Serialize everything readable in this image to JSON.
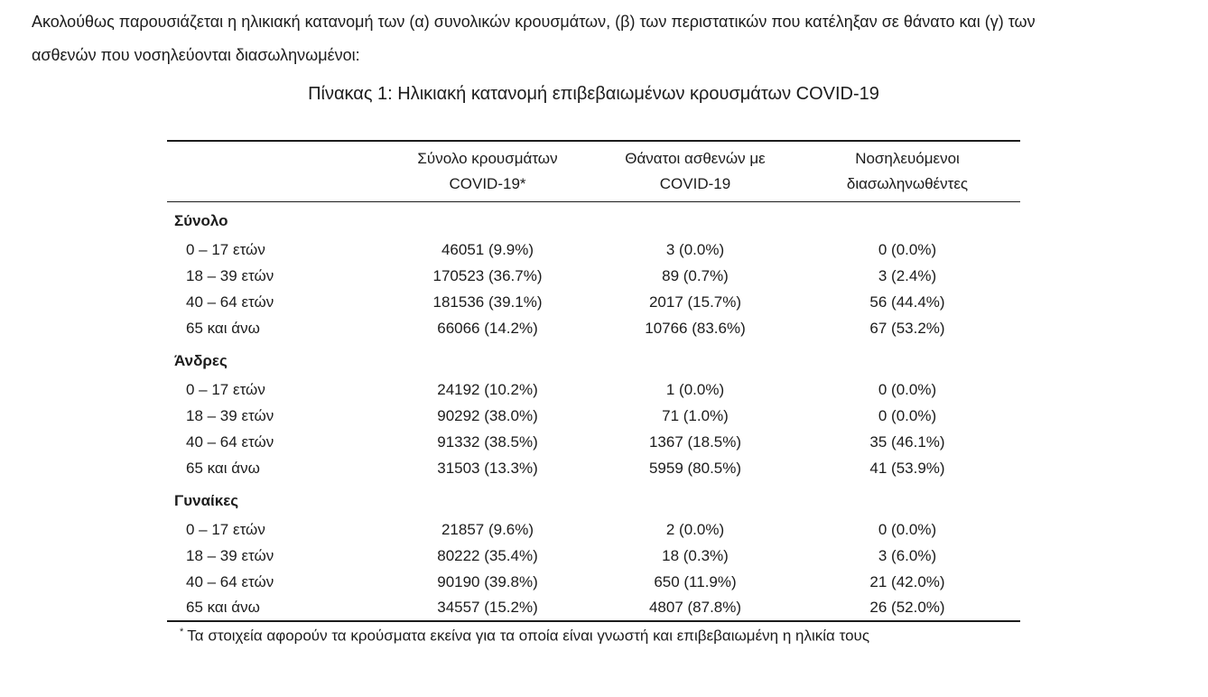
{
  "intro": {
    "line1": "Ακολούθως παρουσιάζεται η ηλικιακή κατανομή των (α) συνολικών κρουσμάτων, (β) των περιστατικών που κατέληξαν σε θάνατο και (γ) των",
    "line2": "ασθενών που νοσηλεύονται διασωληνωμένοι:"
  },
  "table": {
    "title": "Πίνακας 1: Ηλικιακή κατανομή επιβεβαιωμένων κρουσμάτων COVID-19",
    "columns": [
      {
        "line1": "",
        "line2": ""
      },
      {
        "line1": "Σύνολο κρουσμάτων",
        "line2": "COVID-19*"
      },
      {
        "line1": "Θάνατοι ασθενών με",
        "line2": "COVID-19"
      },
      {
        "line1": "Νοσηλευόμενοι",
        "line2": "διασωληνωθέντες"
      }
    ],
    "sections": [
      {
        "label": "Σύνολο",
        "rows": [
          {
            "age": "0 – 17 ετών",
            "cases": "46051 (9.9%)",
            "deaths": "3 (0.0%)",
            "intubated": "0 (0.0%)"
          },
          {
            "age": "18 – 39 ετών",
            "cases": "170523 (36.7%)",
            "deaths": "89 (0.7%)",
            "intubated": "3 (2.4%)"
          },
          {
            "age": "40 – 64 ετών",
            "cases": "181536 (39.1%)",
            "deaths": "2017 (15.7%)",
            "intubated": "56 (44.4%)"
          },
          {
            "age": "65 και άνω",
            "cases": "66066 (14.2%)",
            "deaths": "10766 (83.6%)",
            "intubated": "67 (53.2%)"
          }
        ]
      },
      {
        "label": "Άνδρες",
        "rows": [
          {
            "age": "0 – 17 ετών",
            "cases": "24192 (10.2%)",
            "deaths": "1 (0.0%)",
            "intubated": "0 (0.0%)"
          },
          {
            "age": "18 – 39 ετών",
            "cases": "90292 (38.0%)",
            "deaths": "71 (1.0%)",
            "intubated": "0 (0.0%)"
          },
          {
            "age": "40 – 64 ετών",
            "cases": "91332 (38.5%)",
            "deaths": "1367 (18.5%)",
            "intubated": "35 (46.1%)"
          },
          {
            "age": "65 και άνω",
            "cases": "31503 (13.3%)",
            "deaths": "5959 (80.5%)",
            "intubated": "41 (53.9%)"
          }
        ]
      },
      {
        "label": "Γυναίκες",
        "rows": [
          {
            "age": "0 – 17 ετών",
            "cases": "21857 (9.6%)",
            "deaths": "2 (0.0%)",
            "intubated": "0 (0.0%)"
          },
          {
            "age": "18 – 39 ετών",
            "cases": "80222 (35.4%)",
            "deaths": "18 (0.3%)",
            "intubated": "3 (6.0%)"
          },
          {
            "age": "40 – 64 ετών",
            "cases": "90190 (39.8%)",
            "deaths": "650 (11.9%)",
            "intubated": "21 (42.0%)"
          },
          {
            "age": "65 και άνω",
            "cases": "34557 (15.2%)",
            "deaths": "4807 (87.8%)",
            "intubated": "26 (52.0%)"
          }
        ]
      }
    ],
    "footnote_marker": "*",
    "footnote": "Τα στοιχεία αφορούν τα κρούσματα εκείνα για τα οποία είναι γνωστή και επιβεβαιωμένη η ηλικία τους"
  }
}
